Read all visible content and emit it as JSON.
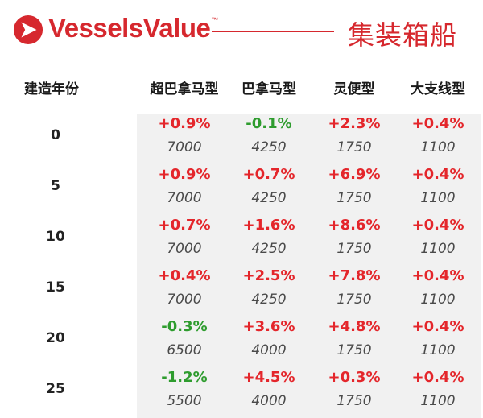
{
  "header": {
    "brand": "VesselsValue",
    "trademark": "™",
    "title": "集装箱船",
    "brand_color": "#d6282e"
  },
  "table": {
    "age_header": "建造年份",
    "columns": [
      "超巴拿马型",
      "巴拿马型",
      "灵便型",
      "大支线型"
    ],
    "rows": [
      {
        "age": "0",
        "changes": [
          "+0.9%",
          "-0.1%",
          "+2.3%",
          "+0.4%"
        ],
        "values": [
          "7000",
          "4250",
          "1750",
          "1100"
        ]
      },
      {
        "age": "5",
        "changes": [
          "+0.9%",
          "+0.7%",
          "+6.9%",
          "+0.4%"
        ],
        "values": [
          "7000",
          "4250",
          "1750",
          "1100"
        ]
      },
      {
        "age": "10",
        "changes": [
          "+0.7%",
          "+1.6%",
          "+8.6%",
          "+0.4%"
        ],
        "values": [
          "7000",
          "4250",
          "1750",
          "1100"
        ]
      },
      {
        "age": "15",
        "changes": [
          "+0.4%",
          "+2.5%",
          "+7.8%",
          "+0.4%"
        ],
        "values": [
          "7000",
          "4250",
          "1750",
          "1100"
        ]
      },
      {
        "age": "20",
        "changes": [
          "-0.3%",
          "+3.6%",
          "+4.8%",
          "+0.4%"
        ],
        "values": [
          "6500",
          "4000",
          "1750",
          "1100"
        ]
      },
      {
        "age": "25",
        "changes": [
          "-1.2%",
          "+4.5%",
          "+0.3%",
          "+0.4%"
        ],
        "values": [
          "5500",
          "4000",
          "1750",
          "1100"
        ]
      }
    ],
    "positive_color": "#e4262b",
    "negative_color": "#2e9c2e"
  }
}
